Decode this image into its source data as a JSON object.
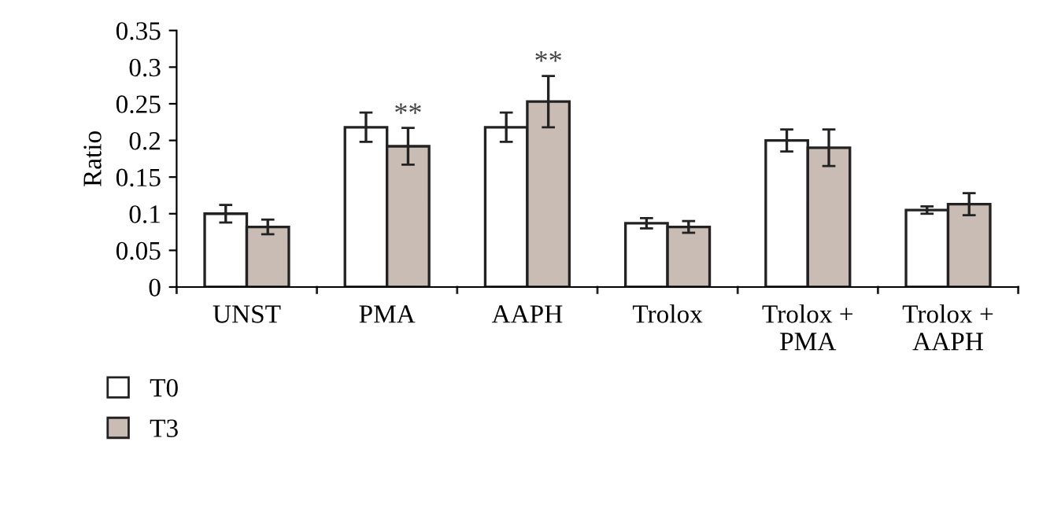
{
  "chart_data": {
    "type": "bar",
    "ylabel": "Ratio",
    "categories": [
      "UNST",
      "PMA",
      "AAPH",
      "Trolox",
      "Trolox +\nPMA",
      "Trolox +\nAAPH"
    ],
    "series": [
      {
        "name": "T0",
        "color": "#ffffff",
        "values": [
          0.1,
          0.218,
          0.218,
          0.087,
          0.2,
          0.105
        ],
        "errors": [
          0.012,
          0.02,
          0.02,
          0.007,
          0.015,
          0.005
        ]
      },
      {
        "name": "T3",
        "color": "#c8bcb5",
        "values": [
          0.082,
          0.192,
          0.253,
          0.082,
          0.19,
          0.113
        ],
        "errors": [
          0.01,
          0.025,
          0.035,
          0.008,
          0.025,
          0.015
        ]
      }
    ],
    "annotations": [
      {
        "text": "**",
        "x": "PMA",
        "y": 0.192
      },
      {
        "text": "**",
        "x": "AAPH",
        "y": 0.253
      }
    ],
    "ylim": [
      0,
      0.35
    ],
    "yticks": [
      0,
      0.05,
      0.1,
      0.15,
      0.2,
      0.25,
      0.3,
      0.35
    ],
    "grid": false,
    "legend": "bottom left"
  }
}
